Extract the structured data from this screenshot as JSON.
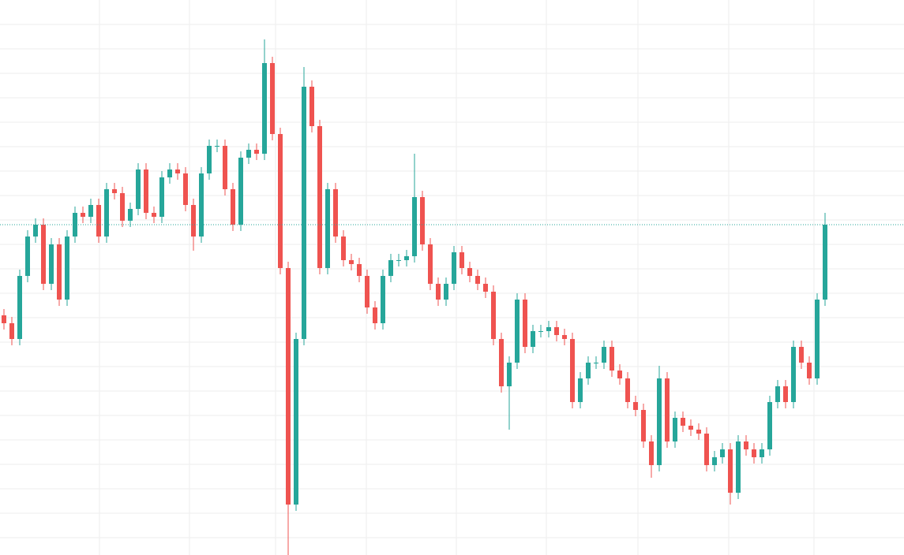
{
  "chart_data": {
    "type": "candlestick",
    "open": [
      304,
      294,
      274,
      354,
      404,
      419,
      344,
      394,
      324,
      404,
      434,
      429,
      444,
      404,
      464,
      459,
      424,
      439,
      489,
      434,
      429,
      479,
      489,
      484,
      444,
      404,
      484,
      519,
      519,
      464,
      419,
      504,
      514,
      509,
      624,
      534,
      364,
      64,
      274,
      594,
      544,
      364,
      464,
      404,
      374,
      369,
      354,
      314,
      294,
      354,
      374,
      374,
      379,
      454,
      394,
      344,
      324,
      344,
      384,
      364,
      354,
      344,
      334,
      274,
      214,
      244,
      324,
      264,
      284,
      284,
      289,
      279,
      274,
      194,
      224,
      244,
      244,
      264,
      234,
      224,
      194,
      184,
      144,
      114,
      224,
      144,
      174,
      164,
      159,
      154,
      114,
      124,
      134,
      79,
      144,
      134,
      124,
      134,
      194,
      214,
      194,
      264,
      244,
      224,
      324
    ],
    "high": [
      312,
      302,
      362,
      412,
      427,
      427,
      402,
      402,
      412,
      442,
      442,
      452,
      452,
      472,
      472,
      467,
      447,
      497,
      497,
      442,
      487,
      497,
      497,
      492,
      452,
      492,
      527,
      527,
      527,
      472,
      512,
      522,
      522,
      654,
      632,
      542,
      372,
      282,
      619,
      602,
      552,
      472,
      472,
      412,
      382,
      377,
      362,
      322,
      362,
      382,
      382,
      387,
      509,
      462,
      402,
      352,
      352,
      392,
      392,
      372,
      362,
      352,
      342,
      282,
      252,
      332,
      332,
      292,
      292,
      297,
      297,
      287,
      282,
      232,
      252,
      252,
      272,
      272,
      242,
      232,
      202,
      192,
      152,
      240,
      232,
      182,
      182,
      172,
      167,
      162,
      132,
      142,
      142,
      152,
      152,
      142,
      142,
      202,
      222,
      222,
      272,
      272,
      252,
      332,
      434
    ],
    "low": [
      286,
      266,
      266,
      346,
      396,
      336,
      336,
      316,
      316,
      396,
      421,
      421,
      396,
      396,
      451,
      416,
      416,
      431,
      426,
      421,
      421,
      471,
      476,
      436,
      386,
      396,
      476,
      511,
      456,
      411,
      411,
      496,
      501,
      501,
      526,
      356,
      0,
      56,
      266,
      536,
      356,
      356,
      396,
      366,
      361,
      346,
      306,
      286,
      286,
      346,
      366,
      366,
      371,
      386,
      336,
      316,
      316,
      336,
      356,
      346,
      336,
      326,
      266,
      206,
      159,
      236,
      256,
      256,
      276,
      276,
      271,
      266,
      186,
      186,
      216,
      236,
      236,
      226,
      216,
      186,
      176,
      136,
      98,
      106,
      136,
      136,
      156,
      151,
      146,
      106,
      106,
      116,
      64,
      71,
      126,
      116,
      116,
      126,
      186,
      186,
      186,
      236,
      216,
      216,
      316
    ],
    "close": [
      294,
      274,
      354,
      404,
      419,
      344,
      394,
      324,
      404,
      434,
      429,
      444,
      404,
      464,
      459,
      424,
      439,
      489,
      434,
      429,
      479,
      489,
      484,
      444,
      404,
      484,
      519,
      519,
      464,
      419,
      504,
      514,
      509,
      624,
      534,
      364,
      64,
      274,
      594,
      544,
      364,
      464,
      404,
      374,
      369,
      354,
      314,
      294,
      354,
      374,
      374,
      379,
      454,
      394,
      344,
      324,
      344,
      384,
      364,
      354,
      344,
      334,
      274,
      214,
      244,
      324,
      264,
      284,
      284,
      289,
      279,
      274,
      194,
      224,
      244,
      244,
      264,
      234,
      224,
      194,
      184,
      144,
      114,
      224,
      144,
      174,
      164,
      159,
      154,
      114,
      124,
      134,
      79,
      144,
      134,
      124,
      134,
      194,
      214,
      194,
      264,
      244,
      224,
      324,
      419
    ],
    "up_color": "#26a69a",
    "down_color": "#ef5350",
    "ylim": [
      0,
      704
    ],
    "xlim": [
      -0.5,
      114
    ],
    "ygrid": [
      673,
      642,
      611,
      580,
      549,
      518,
      487,
      456,
      425,
      394,
      363,
      332,
      301,
      270,
      239,
      208,
      177,
      146,
      115,
      84,
      53,
      22
    ],
    "xgrid": [
      12.1,
      23.5,
      34.4,
      45.9,
      57.3,
      68.7,
      80.3,
      91.8,
      102.6
    ],
    "price_line_color": "#26a69a"
  }
}
